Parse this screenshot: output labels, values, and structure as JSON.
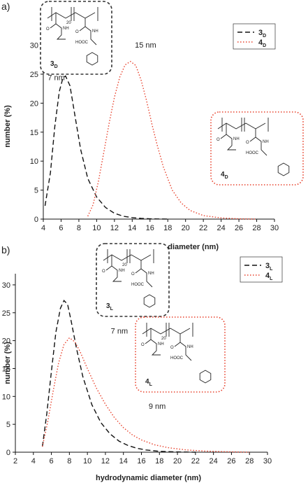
{
  "chart_data": [
    {
      "panel": "a)",
      "type": "line",
      "xlabel": "hydrodynamic diameter (nm)",
      "ylabel": "number (%)",
      "xlim": [
        4,
        30
      ],
      "ylim": [
        0,
        32
      ],
      "xticks": [
        "4",
        "6",
        "8",
        "10",
        "12",
        "14",
        "16",
        "18",
        "20",
        "22",
        "24",
        "26",
        "28",
        "30"
      ],
      "yticks": [
        "0",
        "5",
        "10",
        "15",
        "20",
        "25",
        "30"
      ],
      "legend_position": "top-right",
      "series": [
        {
          "name": "3D",
          "label_main": "3",
          "label_sub": "D",
          "style": "dashed",
          "color": "#111111",
          "x": [
            4.2,
            4.8,
            5.3,
            5.8,
            6.2,
            6.5,
            7.0,
            7.6,
            8.2,
            9.0,
            10.0,
            11.0,
            12.0,
            13.0,
            14.0,
            15.0,
            16.0,
            17.0,
            18.0
          ],
          "y": [
            2.3,
            8.0,
            16.0,
            22.0,
            24.3,
            24.7,
            23.0,
            17.5,
            12.0,
            7.0,
            3.8,
            2.0,
            1.0,
            0.5,
            0.25,
            0.12,
            0.05,
            0.02,
            0.0
          ]
        },
        {
          "name": "4D",
          "label_main": "4",
          "label_sub": "D",
          "style": "dotted",
          "color": "#e8412c",
          "x": [
            9.0,
            9.6,
            10.2,
            10.8,
            11.4,
            12.0,
            12.6,
            13.2,
            13.8,
            14.4,
            15.0,
            15.6,
            16.2,
            16.8,
            17.5,
            18.5,
            19.5,
            20.5,
            22.0,
            24.0,
            26.0,
            28.0
          ],
          "y": [
            0.5,
            2.5,
            6.5,
            11.5,
            16.5,
            21.0,
            24.5,
            26.6,
            27.2,
            26.5,
            24.0,
            20.5,
            16.5,
            12.8,
            9.0,
            5.0,
            2.8,
            1.5,
            0.6,
            0.2,
            0.05,
            0.0
          ]
        }
      ],
      "annotations": [
        {
          "text": "7 nm",
          "x": 4.5,
          "y": 24.0
        },
        {
          "text": "15 nm",
          "x": 14.3,
          "y": 29.6
        }
      ],
      "structures": [
        {
          "label_main": "3",
          "label_sub": "D",
          "frame_color": "#333333",
          "repeat": "20"
        },
        {
          "label_main": "4",
          "label_sub": "D",
          "frame_color": "#e8412c",
          "repeat": ""
        }
      ]
    },
    {
      "panel": "b)",
      "type": "line",
      "xlabel": "hydrodynamic diameter (nm)",
      "ylabel": "number (%)",
      "xlim": [
        2,
        30
      ],
      "ylim": [
        0,
        32
      ],
      "xticks": [
        "2",
        "4",
        "6",
        "8",
        "10",
        "12",
        "14",
        "16",
        "18",
        "20",
        "22",
        "24",
        "26",
        "28",
        "30"
      ],
      "yticks": [
        "0",
        "5",
        "10",
        "15",
        "20",
        "25",
        "30"
      ],
      "legend_position": "top-right",
      "series": [
        {
          "name": "3L",
          "label_main": "3",
          "label_sub": "L",
          "style": "dashed",
          "color": "#111111",
          "x": [
            5.0,
            5.5,
            6.0,
            6.5,
            7.0,
            7.4,
            7.8,
            8.2,
            8.8,
            9.5,
            10.5,
            11.5,
            12.5,
            13.5,
            14.5,
            15.5,
            16.5,
            18.0,
            20.0,
            22.0
          ],
          "y": [
            1.0,
            7.0,
            14.5,
            21.5,
            25.8,
            27.2,
            26.5,
            23.5,
            18.5,
            13.5,
            8.5,
            5.3,
            3.3,
            2.0,
            1.2,
            0.7,
            0.4,
            0.15,
            0.05,
            0.0
          ]
        },
        {
          "name": "4L",
          "label_main": "4",
          "label_sub": "L",
          "style": "dotted",
          "color": "#e8412c",
          "x": [
            5.0,
            5.6,
            6.2,
            6.8,
            7.4,
            8.0,
            8.6,
            9.2,
            10.0,
            11.0,
            12.0,
            13.0,
            14.0,
            15.0,
            16.0,
            17.5,
            19.0,
            21.0,
            23.0,
            25.0,
            28.0
          ],
          "y": [
            1.0,
            5.5,
            11.0,
            16.0,
            19.3,
            20.5,
            19.8,
            18.0,
            15.0,
            11.5,
            8.6,
            6.2,
            4.4,
            3.1,
            2.2,
            1.3,
            0.8,
            0.4,
            0.2,
            0.1,
            0.0
          ]
        }
      ],
      "annotations": [
        {
          "text": "7 nm",
          "x": 12.6,
          "y": 21.3
        },
        {
          "text": "9 nm",
          "x": 16.8,
          "y": 7.8
        }
      ],
      "structures": [
        {
          "label_main": "3",
          "label_sub": "L",
          "frame_color": "#333333",
          "repeat": "20"
        },
        {
          "label_main": "4",
          "label_sub": "L",
          "frame_color": "#e8412c",
          "repeat": "20"
        }
      ]
    }
  ]
}
